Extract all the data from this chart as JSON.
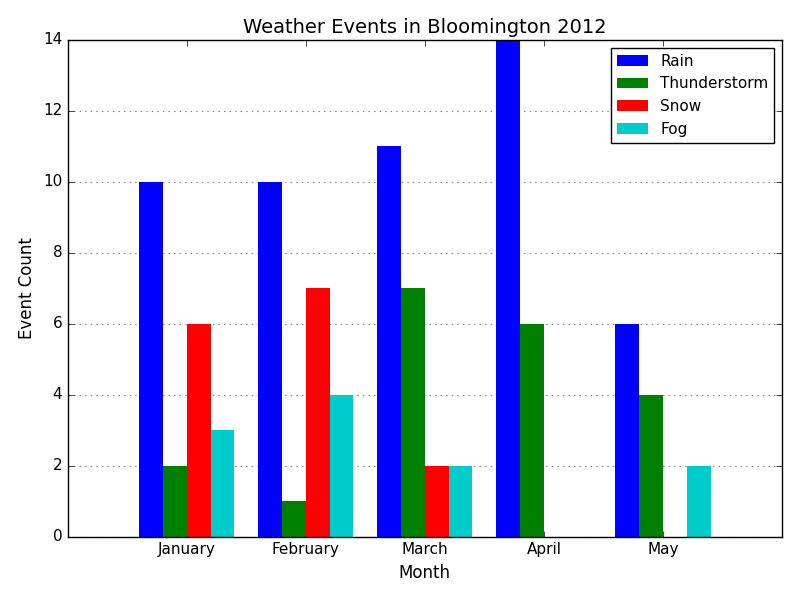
{
  "title": "Weather Events in Bloomington 2012",
  "xlabel": "Month",
  "ylabel": "Event Count",
  "months": [
    "January",
    "February",
    "March",
    "April",
    "May"
  ],
  "series": {
    "Rain": [
      10,
      10,
      11,
      14,
      6
    ],
    "Thunderstorm": [
      2,
      1,
      7,
      6,
      4
    ],
    "Snow": [
      6,
      7,
      2,
      0,
      0
    ],
    "Fog": [
      3,
      4,
      2,
      0,
      2
    ]
  },
  "colors": {
    "Rain": "#0000ff",
    "Thunderstorm": "#008000",
    "Snow": "#ff0000",
    "Fog": "#00cccc"
  },
  "ylim": [
    0,
    14
  ],
  "yticks": [
    0,
    2,
    4,
    6,
    8,
    10,
    12,
    14
  ],
  "bar_width": 0.2,
  "figsize": [
    8.0,
    6.0
  ],
  "dpi": 100,
  "legend_loc": "upper right",
  "grid_linestyle": "dotted",
  "title_fontsize": 14,
  "label_fontsize": 12,
  "legend_fontsize": 11,
  "tick_fontsize": 11
}
